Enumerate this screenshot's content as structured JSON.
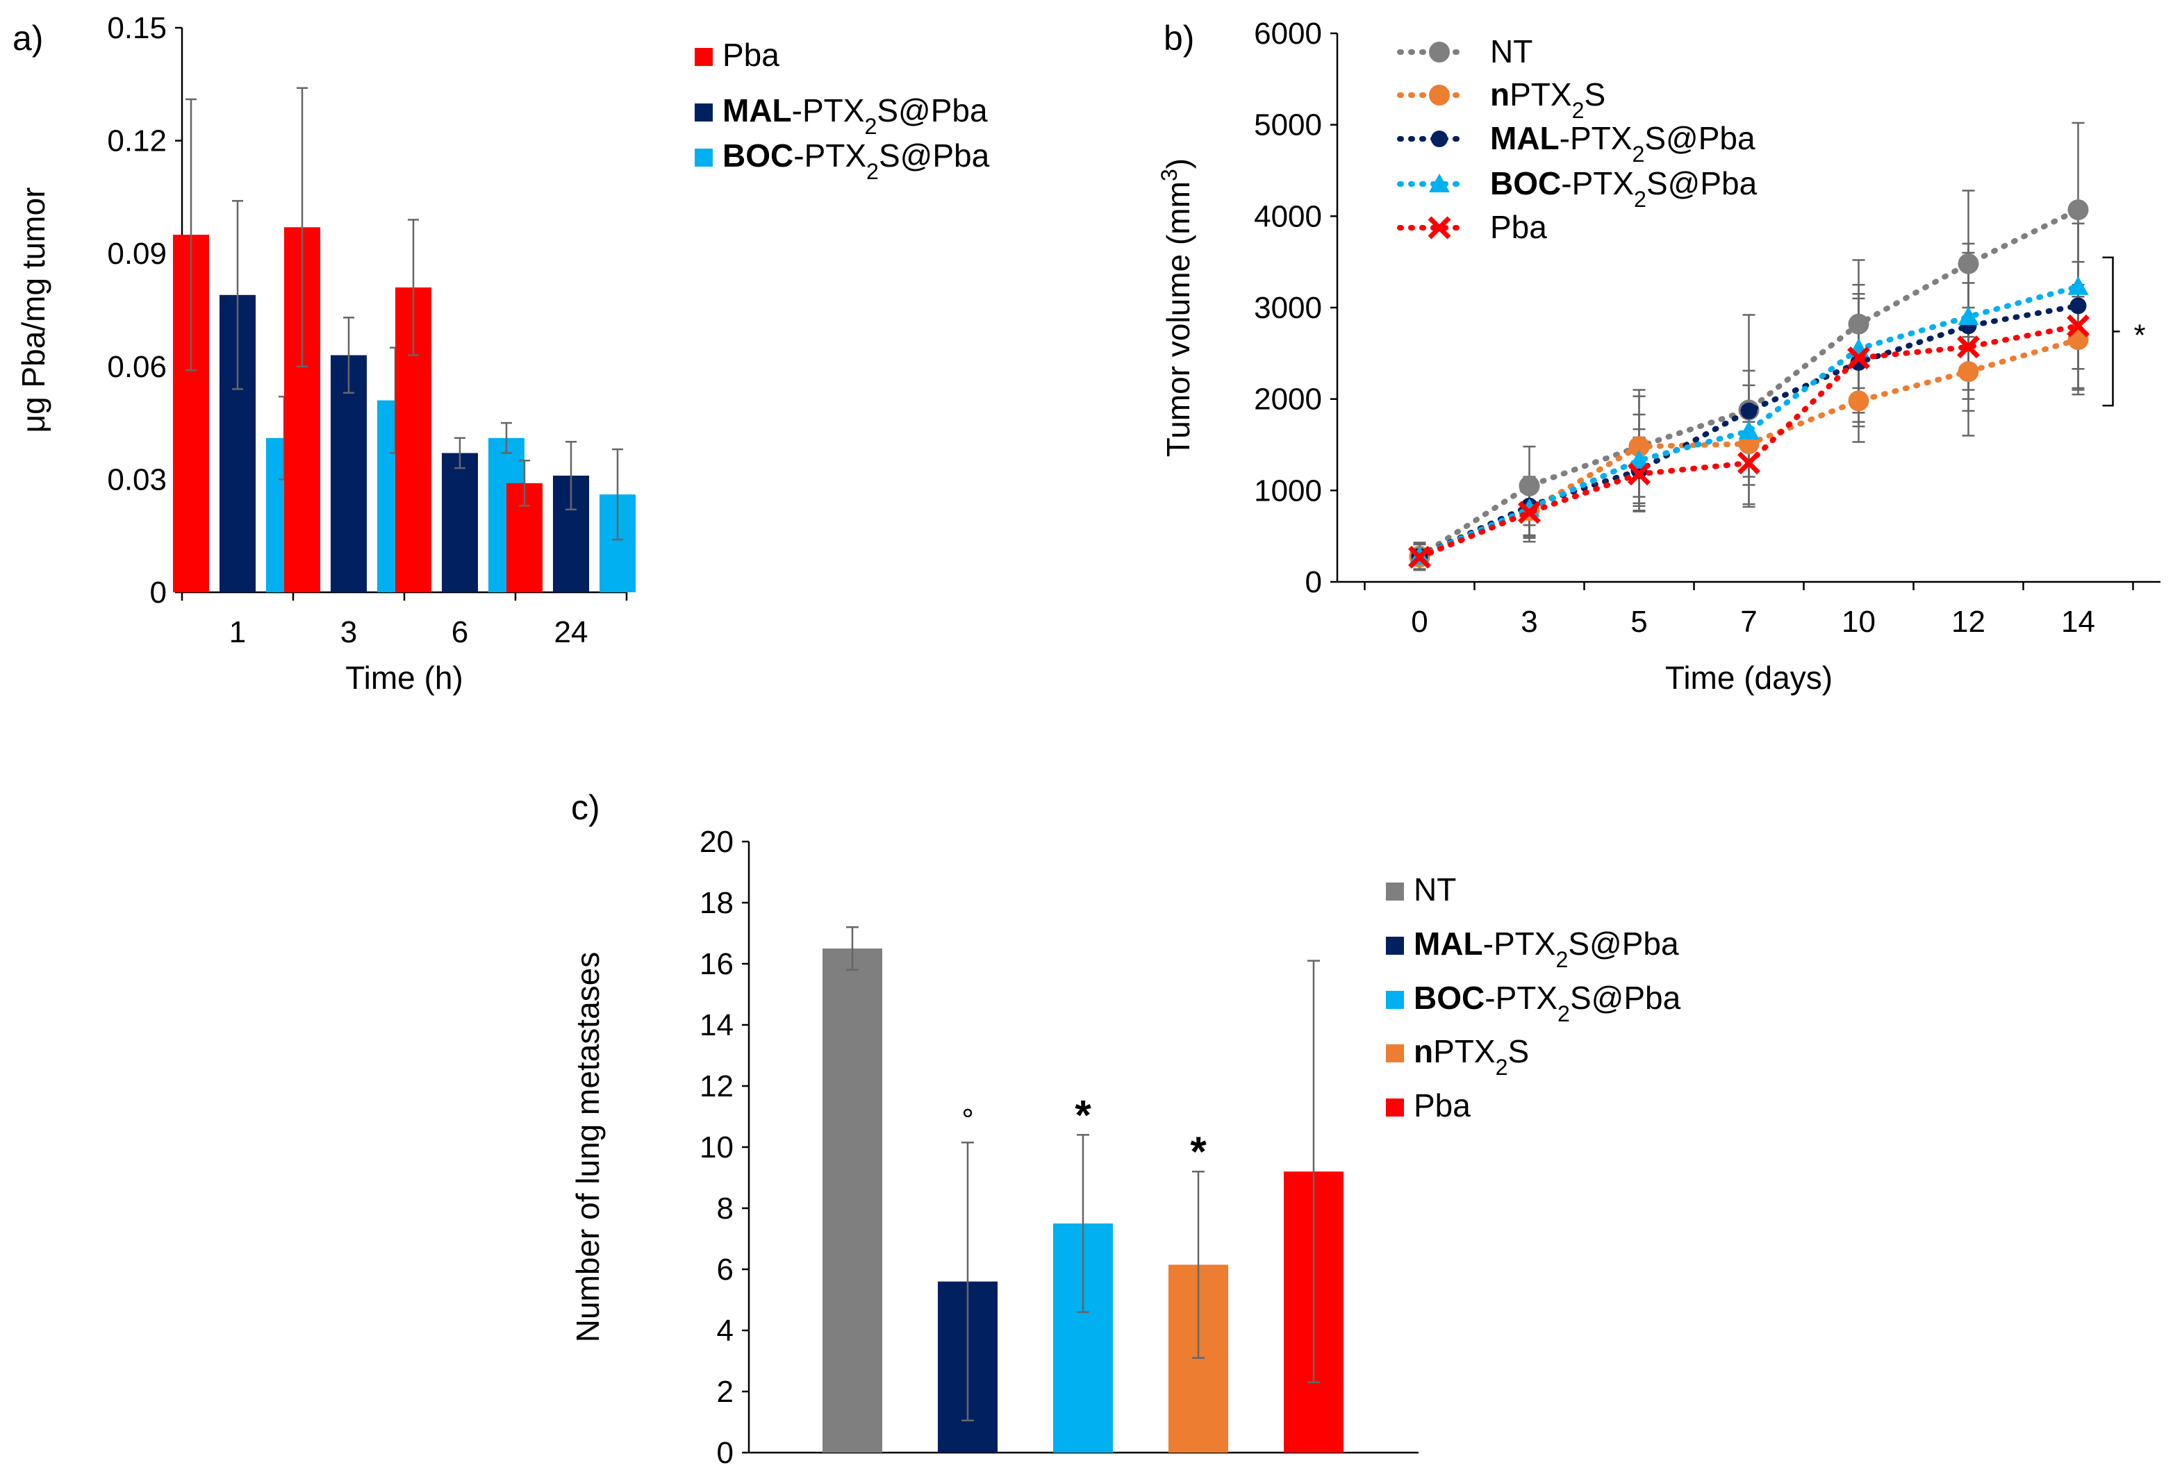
{
  "chart_data": [
    {
      "panel": "a)",
      "type": "bar",
      "ylabel": "μg Pba/mg tumor",
      "xlabel": "Time (h)",
      "ylim": [
        0,
        0.15
      ],
      "yticks": [
        "0",
        "0.03",
        "0.06",
        "0.09",
        "0.12",
        "0.15"
      ],
      "categories": [
        "1",
        "3",
        "6",
        "24"
      ],
      "series": [
        {
          "name": "Pba",
          "name_bold": "",
          "name_rest": "Pba",
          "color": "#ff0000",
          "values": [
            0.095,
            0.097,
            0.081,
            0.029
          ],
          "errors": [
            0.036,
            0.037,
            0.018,
            0.006
          ]
        },
        {
          "name": "MAL-PTX2S@Pba",
          "name_bold": "MAL",
          "name_rest": "-PTX2S@Pba",
          "color": "#002060",
          "values": [
            0.079,
            0.063,
            0.037,
            0.031
          ],
          "errors": [
            0.025,
            0.01,
            0.004,
            0.009
          ]
        },
        {
          "name": "BOC-PTX2S@Pba",
          "name_bold": "BOC",
          "name_rest": "-PTX2S@Pba",
          "color": "#00b0f0",
          "values": [
            0.041,
            0.051,
            0.041,
            0.026
          ],
          "errors": [
            0.011,
            0.014,
            0.004,
            0.012
          ]
        }
      ]
    },
    {
      "panel": "b)",
      "type": "line",
      "ylabel": "Tumor volume (mm3)",
      "xlabel": "Time (days)",
      "ylim": [
        0,
        6000
      ],
      "yticks": [
        "0",
        "1000",
        "2000",
        "3000",
        "4000",
        "5000",
        "6000"
      ],
      "x": [
        "0",
        "3",
        "5",
        "7",
        "10",
        "12",
        "14"
      ],
      "annotation": "*",
      "series": [
        {
          "name": "NT",
          "name_bold": "",
          "name_rest": "NT",
          "color": "#7f7f7f",
          "marker": "circle",
          "values": [
            280,
            1050,
            1480,
            1880,
            2820,
            3480,
            4070
          ],
          "errors": [
            150,
            430,
            620,
            430,
            700,
            800,
            950
          ]
        },
        {
          "name": "nPTX2S",
          "name_bold": "n",
          "name_rest": "PTX2S",
          "color": "#ed7d31",
          "marker": "circle",
          "values": [
            270,
            780,
            1480,
            1510,
            1980,
            2300,
            2650
          ],
          "errors": [
            140,
            300,
            550,
            450,
            450,
            700,
            600
          ]
        },
        {
          "name": "MAL-PTX2S@Pba",
          "name_bold": "MAL",
          "name_rest": "-PTX2S@Pba",
          "color": "#002060",
          "marker": "dot",
          "values": [
            280,
            830,
            1220,
            1870,
            2400,
            2800,
            3020
          ],
          "errors": [
            140,
            320,
            450,
            1050,
            700,
            800,
            900
          ]
        },
        {
          "name": "BOC-PTX2S@Pba",
          "name_bold": "BOC",
          "name_rest": "-PTX2S@Pba",
          "color": "#00b0f0",
          "marker": "triangle",
          "values": [
            280,
            800,
            1330,
            1650,
            2550,
            2900,
            3230
          ],
          "errors": [
            140,
            300,
            500,
            500,
            700,
            800,
            900
          ]
        },
        {
          "name": "Pba",
          "name_bold": "",
          "name_rest": "Pba",
          "color": "#ff0000",
          "marker": "cross",
          "values": [
            270,
            760,
            1180,
            1300,
            2450,
            2570,
            2800
          ],
          "errors": [
            140,
            320,
            400,
            450,
            700,
            700,
            700
          ]
        }
      ]
    },
    {
      "panel": "c)",
      "type": "bar",
      "ylabel": "Number of lung metastases",
      "xlabel": "",
      "ylim": [
        0,
        20
      ],
      "yticks": [
        "0",
        "2",
        "4",
        "6",
        "8",
        "10",
        "12",
        "14",
        "16",
        "18",
        "20"
      ],
      "bars": [
        {
          "name": "NT",
          "name_bold": "",
          "name_rest": "NT",
          "color": "#7f7f7f",
          "value": 16.5,
          "error": 0.7,
          "mark": ""
        },
        {
          "name": "MAL-PTX2S@Pba",
          "name_bold": "MAL",
          "name_rest": "-PTX2S@Pba",
          "color": "#002060",
          "value": 5.6,
          "error": 4.55,
          "mark": "°"
        },
        {
          "name": "BOC-PTX2S@Pba",
          "name_bold": "BOC",
          "name_rest": "-PTX2S@Pba",
          "color": "#00b0f0",
          "value": 7.5,
          "error": 2.9,
          "mark": "*"
        },
        {
          "name": "nPTX2S",
          "name_bold": "n",
          "name_rest": "PTX2S",
          "color": "#ed7d31",
          "value": 6.15,
          "error": 3.05,
          "mark": "*"
        },
        {
          "name": "Pba",
          "name_bold": "",
          "name_rest": "Pba",
          "color": "#ff0000",
          "value": 9.2,
          "error": 6.9,
          "mark": ""
        }
      ]
    }
  ]
}
